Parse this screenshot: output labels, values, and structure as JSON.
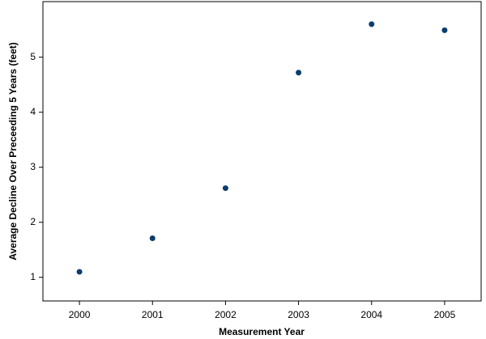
{
  "chart_data": {
    "type": "scatter",
    "x_label": "Measurement Year",
    "y_label": "Average Decline Over Preceeding 5 Years (feet)",
    "series": [
      {
        "color": "#0b3d6e",
        "x": [
          2000,
          2001,
          2002,
          2003,
          2004,
          2005
        ],
        "values": [
          1.1,
          1.71,
          2.62,
          4.72,
          5.6,
          5.49
        ]
      }
    ],
    "xlim": [
      1999.5,
      2005.5
    ],
    "xticks": [
      2000,
      2001,
      2002,
      2003,
      2004,
      2005
    ],
    "ylim": [
      0.57,
      6.01
    ],
    "yticks": [
      1,
      2,
      3,
      4,
      5
    ],
    "grid": false
  }
}
